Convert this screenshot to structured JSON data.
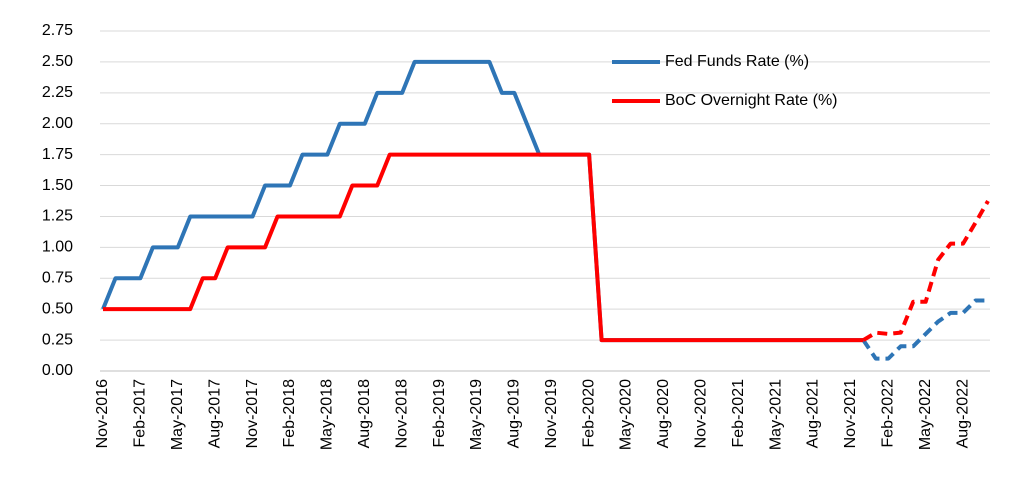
{
  "chart_data": {
    "type": "line",
    "categories": [
      "Nov-2016",
      null,
      null,
      "Feb-2017",
      null,
      null,
      "May-2017",
      null,
      null,
      "Aug-2017",
      null,
      null,
      "Nov-2017",
      null,
      null,
      "Feb-2018",
      null,
      null,
      "May-2018",
      null,
      null,
      "Aug-2018",
      null,
      null,
      "Nov-2018",
      null,
      null,
      "Feb-2019",
      null,
      null,
      "May-2019",
      null,
      null,
      "Aug-2019",
      null,
      null,
      "Nov-2019",
      null,
      null,
      "Feb-2020",
      null,
      null,
      "May-2020",
      null,
      null,
      "Aug-2020",
      null,
      null,
      "Nov-2020",
      null,
      null,
      "Feb-2021",
      null,
      null,
      "May-2021",
      null,
      null,
      "Aug-2021",
      null,
      null,
      "Nov-2021",
      null,
      null,
      "Feb-2022",
      null,
      null,
      "May-2022",
      null,
      null,
      "Aug-2022",
      null,
      null
    ],
    "series": [
      {
        "name": "Fed Funds Rate (%)",
        "color": "#2e75b6",
        "dash_start": 61,
        "values": [
          0.5,
          0.75,
          0.75,
          0.75,
          1.0,
          1.0,
          1.0,
          1.25,
          1.25,
          1.25,
          1.25,
          1.25,
          1.25,
          1.5,
          1.5,
          1.5,
          1.75,
          1.75,
          1.75,
          2.0,
          2.0,
          2.0,
          2.25,
          2.25,
          2.25,
          2.5,
          2.5,
          2.5,
          2.5,
          2.5,
          2.5,
          2.5,
          2.25,
          2.25,
          2.0,
          1.75,
          1.75,
          1.75,
          1.75,
          1.75,
          0.25,
          0.25,
          0.25,
          0.25,
          0.25,
          0.25,
          0.25,
          0.25,
          0.25,
          0.25,
          0.25,
          0.25,
          0.25,
          0.25,
          0.25,
          0.25,
          0.25,
          0.25,
          0.25,
          0.25,
          0.25,
          0.25,
          0.1,
          0.1,
          0.2,
          0.2,
          0.3,
          0.4,
          0.47,
          0.47,
          0.57,
          0.57
        ]
      },
      {
        "name": "BoC Overnight Rate (%)",
        "color": "#ff0000",
        "dash_start": 61,
        "values": [
          0.5,
          0.5,
          0.5,
          0.5,
          0.5,
          0.5,
          0.5,
          0.5,
          0.75,
          0.75,
          1.0,
          1.0,
          1.0,
          1.0,
          1.25,
          1.25,
          1.25,
          1.25,
          1.25,
          1.25,
          1.5,
          1.5,
          1.5,
          1.75,
          1.75,
          1.75,
          1.75,
          1.75,
          1.75,
          1.75,
          1.75,
          1.75,
          1.75,
          1.75,
          1.75,
          1.75,
          1.75,
          1.75,
          1.75,
          1.75,
          0.25,
          0.25,
          0.25,
          0.25,
          0.25,
          0.25,
          0.25,
          0.25,
          0.25,
          0.25,
          0.25,
          0.25,
          0.25,
          0.25,
          0.25,
          0.25,
          0.25,
          0.25,
          0.25,
          0.25,
          0.25,
          0.25,
          0.31,
          0.3,
          0.31,
          0.56,
          0.56,
          0.9,
          1.03,
          1.03,
          1.2,
          1.375
        ]
      }
    ],
    "ylim": [
      0,
      2.75
    ],
    "yticks": [
      {
        "value": 0,
        "label": "0.00"
      },
      {
        "value": 0.25,
        "label": "0.25"
      },
      {
        "value": 0.5,
        "label": "0.50"
      },
      {
        "value": 0.75,
        "label": "0.75"
      },
      {
        "value": 1,
        "label": "1.00"
      },
      {
        "value": 1.25,
        "label": "1.25"
      },
      {
        "value": 1.5,
        "label": "1.50"
      },
      {
        "value": 1.75,
        "label": "1.75"
      },
      {
        "value": 2,
        "label": "2.00"
      },
      {
        "value": 2.25,
        "label": "2.25"
      },
      {
        "value": 2.5,
        "label": "2.50"
      },
      {
        "value": 2.75,
        "label": "2.75"
      }
    ],
    "grid": true,
    "legend": "top"
  }
}
